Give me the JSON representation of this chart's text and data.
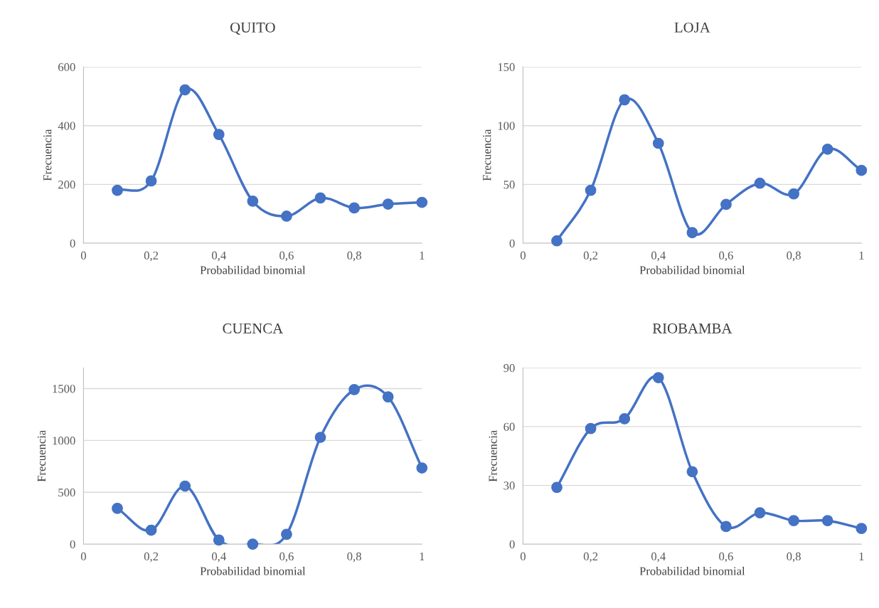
{
  "chart_data": [
    {
      "type": "line",
      "title": "QUITO",
      "xlabel": "Probabilidad binomial",
      "ylabel": "Frecuencia",
      "x": [
        0.1,
        0.2,
        0.3,
        0.4,
        0.5,
        0.6,
        0.7,
        0.8,
        0.9,
        1
      ],
      "series": [
        {
          "color": "#4472c4",
          "values": [
            180,
            212,
            522,
            370,
            143,
            92,
            154,
            120,
            133,
            139
          ]
        }
      ],
      "xlim": [
        0,
        1
      ],
      "xticks": [
        0,
        {
          "value": 0.2,
          "label": "0,2"
        },
        {
          "value": 0.4,
          "label": "0,4"
        },
        {
          "value": 0.6,
          "label": "0,6"
        },
        {
          "value": 0.8,
          "label": "0,8"
        },
        1
      ],
      "ylim": [
        0,
        600
      ],
      "yticks": [
        0,
        200,
        400,
        600
      ],
      "grid": "y",
      "marker": "circle",
      "legend": false
    },
    {
      "type": "line",
      "title": "LOJA",
      "xlabel": "Probabilidad binomial",
      "ylabel": "Frecuencia",
      "x": [
        0.1,
        0.2,
        0.3,
        0.4,
        0.5,
        0.6,
        0.7,
        0.8,
        0.9,
        1
      ],
      "series": [
        {
          "color": "#4472c4",
          "values": [
            2,
            45,
            122,
            85,
            9,
            33,
            51,
            42,
            80,
            62
          ]
        }
      ],
      "xlim": [
        0,
        1
      ],
      "xticks": [
        0,
        {
          "value": 0.2,
          "label": "0,2"
        },
        {
          "value": 0.4,
          "label": "0,4"
        },
        {
          "value": 0.6,
          "label": "0,6"
        },
        {
          "value": 0.8,
          "label": "0,8"
        },
        1
      ],
      "ylim": [
        0,
        150
      ],
      "yticks": [
        0,
        50,
        100,
        150
      ],
      "grid": "y",
      "marker": "circle",
      "legend": false
    },
    {
      "type": "line",
      "title": "CUENCA",
      "xlabel": "Probabilidad binomial",
      "ylabel": "Frecuencia",
      "x": [
        0.1,
        0.2,
        0.3,
        0.4,
        0.5,
        0.6,
        0.7,
        0.8,
        0.9,
        1
      ],
      "series": [
        {
          "color": "#4472c4",
          "values": [
            345,
            135,
            560,
            40,
            0,
            95,
            1030,
            1490,
            1420,
            735
          ]
        }
      ],
      "xlim": [
        0,
        1
      ],
      "xticks": [
        0,
        {
          "value": 0.2,
          "label": "0,2"
        },
        {
          "value": 0.4,
          "label": "0,4"
        },
        {
          "value": 0.6,
          "label": "0,6"
        },
        {
          "value": 0.8,
          "label": "0,8"
        },
        1
      ],
      "ylim": [
        0,
        1700
      ],
      "yticks": [
        0,
        500,
        1000,
        1500
      ],
      "grid": "y",
      "marker": "circle",
      "legend": false
    },
    {
      "type": "line",
      "title": "RIOBAMBA",
      "xlabel": "Probabilidad binomial",
      "ylabel": "Frecuencia",
      "x": [
        0.1,
        0.2,
        0.3,
        0.4,
        0.5,
        0.6,
        0.7,
        0.8,
        0.9,
        1
      ],
      "series": [
        {
          "color": "#4472c4",
          "values": [
            29,
            59,
            64,
            85,
            37,
            9,
            16,
            12,
            12,
            8
          ]
        }
      ],
      "xlim": [
        0,
        1
      ],
      "xticks": [
        0,
        {
          "value": 0.2,
          "label": "0,2"
        },
        {
          "value": 0.4,
          "label": "0,4"
        },
        {
          "value": 0.6,
          "label": "0,6"
        },
        {
          "value": 0.8,
          "label": "0,8"
        },
        1
      ],
      "ylim": [
        0,
        90
      ],
      "yticks": [
        0,
        30,
        60,
        90
      ],
      "grid": "y",
      "marker": "circle",
      "legend": false
    }
  ]
}
